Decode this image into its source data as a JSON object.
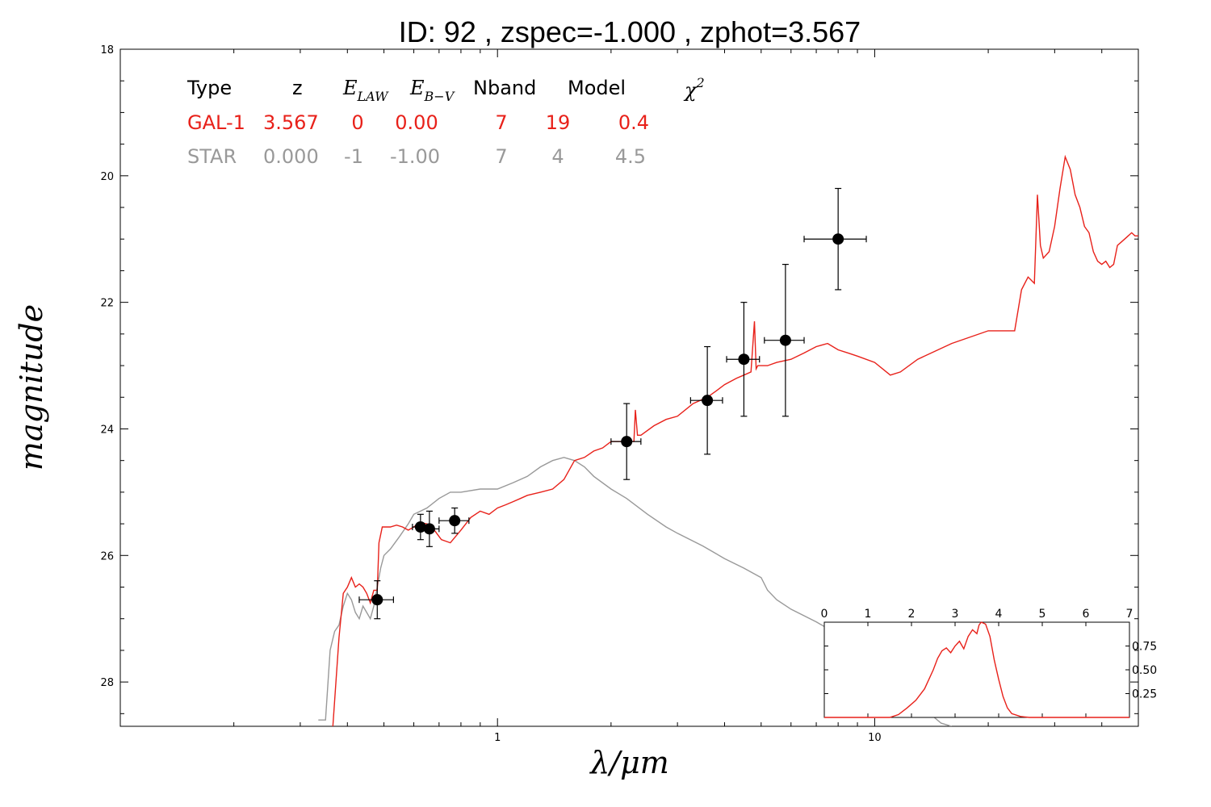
{
  "chart_data": {
    "type": "line",
    "title": "ID:  92    , zspec=-1.000 , zphot=3.567",
    "xlabel": "λ/μm",
    "ylabel": "magnitude",
    "x_scale": "log",
    "xlim": [
      0.1,
      50
    ],
    "ylim": [
      28.7,
      18
    ],
    "y_inverted": true,
    "xticks": [
      {
        "value": 1,
        "label": "1"
      },
      {
        "value": 10,
        "label": "10"
      }
    ],
    "yticks": [
      {
        "value": 18,
        "label": "18"
      },
      {
        "value": 20,
        "label": "20"
      },
      {
        "value": 22,
        "label": "22"
      },
      {
        "value": 24,
        "label": "24"
      },
      {
        "value": 26,
        "label": "26"
      },
      {
        "value": 28,
        "label": "28"
      }
    ],
    "grid": false,
    "table": {
      "headers": [
        "Type",
        "z",
        "E_LAW",
        "E_B-V",
        "Nband",
        "Model",
        "χ2"
      ],
      "header_parts": {
        "type": "Type",
        "z": "z",
        "elaw_main": "E",
        "elaw_sub": "LAW",
        "ebv_main": "E",
        "ebv_sub": "B−V",
        "nband": "Nband",
        "model": "Model",
        "chi_main": "χ",
        "chi_sup": "2"
      },
      "rows": [
        {
          "type": "GAL-1",
          "z": "3.567",
          "elaw": "0",
          "ebv": "0.00",
          "nband": "7",
          "model": "19",
          "chi2": "0.4",
          "color": "#e8211a"
        },
        {
          "type": "STAR",
          "z": "0.000",
          "elaw": "-1",
          "ebv": "-1.00",
          "nband": "7",
          "model": "4",
          "chi2": "4.5",
          "color": "#999999"
        }
      ]
    },
    "series": [
      {
        "name": "GAL-1",
        "color": "#e8211a",
        "x": [
          0.366,
          0.38,
          0.39,
          0.4,
          0.41,
          0.42,
          0.43,
          0.44,
          0.45,
          0.46,
          0.47,
          0.48,
          0.485,
          0.495,
          0.5,
          0.52,
          0.54,
          0.56,
          0.58,
          0.6,
          0.62,
          0.65,
          0.68,
          0.71,
          0.75,
          0.8,
          0.85,
          0.9,
          0.95,
          1.0,
          1.05,
          1.1,
          1.15,
          1.2,
          1.3,
          1.4,
          1.5,
          1.6,
          1.7,
          1.75,
          1.8,
          1.9,
          2.0,
          2.2,
          2.3,
          2.32,
          2.35,
          2.4,
          2.6,
          2.8,
          3.0,
          3.3,
          3.6,
          3.8,
          4.0,
          4.3,
          4.5,
          4.7,
          4.8,
          4.85,
          4.9,
          5.0,
          5.2,
          5.5,
          6.0,
          6.5,
          7.0,
          7.5,
          8.0,
          8.5,
          9.0,
          10.0,
          11.0,
          11.7,
          13.0,
          16.0,
          20.0,
          23.5,
          24.5,
          25.5,
          26.5,
          27.0,
          27.5,
          28.0,
          29.0,
          30.0,
          31.0,
          32.0,
          33.0,
          34.0,
          35.0,
          36.0,
          37.0,
          38.0,
          39.0,
          40.0,
          41.0,
          42.0,
          43.0,
          44.0,
          45.0,
          46.0,
          47.0,
          48.0,
          49.0,
          50.0
        ],
        "y": [
          28.7,
          27.3,
          26.6,
          26.5,
          26.35,
          26.5,
          26.45,
          26.5,
          26.6,
          26.75,
          26.55,
          26.55,
          25.8,
          25.55,
          25.55,
          25.55,
          25.52,
          25.55,
          25.6,
          25.55,
          25.48,
          25.5,
          25.6,
          25.75,
          25.8,
          25.6,
          25.4,
          25.3,
          25.35,
          25.25,
          25.2,
          25.15,
          25.1,
          25.05,
          25.0,
          24.95,
          24.8,
          24.5,
          24.45,
          24.4,
          24.35,
          24.3,
          24.2,
          24.2,
          24.2,
          23.7,
          24.1,
          24.1,
          23.95,
          23.85,
          23.8,
          23.6,
          23.5,
          23.4,
          23.3,
          23.2,
          23.15,
          23.1,
          22.3,
          23.05,
          23.0,
          23.0,
          23.0,
          22.95,
          22.9,
          22.8,
          22.7,
          22.65,
          22.75,
          22.8,
          22.85,
          22.95,
          23.15,
          23.1,
          22.9,
          22.65,
          22.45,
          22.45,
          21.8,
          21.6,
          21.7,
          20.3,
          21.1,
          21.3,
          21.2,
          20.8,
          20.2,
          19.7,
          19.9,
          20.3,
          20.5,
          20.8,
          20.9,
          21.2,
          21.35,
          21.4,
          21.35,
          21.45,
          21.4,
          21.1,
          21.05,
          21.0,
          20.95,
          20.9,
          20.95,
          20.95
        ]
      },
      {
        "name": "STAR",
        "color": "#999999",
        "x": [
          0.335,
          0.34,
          0.35,
          0.36,
          0.37,
          0.38,
          0.39,
          0.4,
          0.41,
          0.42,
          0.43,
          0.44,
          0.45,
          0.46,
          0.47,
          0.48,
          0.49,
          0.5,
          0.52,
          0.55,
          0.58,
          0.6,
          0.65,
          0.7,
          0.75,
          0.8,
          0.9,
          1.0,
          1.1,
          1.2,
          1.3,
          1.4,
          1.5,
          1.6,
          1.7,
          1.8,
          2.0,
          2.2,
          2.5,
          2.8,
          3.0,
          3.5,
          4.0,
          4.5,
          5.0,
          5.2,
          5.5,
          6.0,
          7.0,
          8.0,
          9.0,
          10.0,
          11.0,
          12.0,
          13.0,
          14.0,
          15.0,
          16.0
        ],
        "y": [
          28.6,
          28.6,
          28.6,
          27.5,
          27.2,
          27.1,
          26.8,
          26.6,
          26.7,
          26.9,
          27.0,
          26.8,
          26.9,
          27.0,
          26.8,
          26.5,
          26.2,
          26.0,
          25.9,
          25.7,
          25.5,
          25.35,
          25.25,
          25.1,
          25.0,
          25.0,
          24.95,
          24.95,
          24.85,
          24.75,
          24.6,
          24.5,
          24.45,
          24.5,
          24.6,
          24.75,
          24.95,
          25.1,
          25.35,
          25.55,
          25.65,
          25.85,
          26.05,
          26.2,
          26.35,
          26.55,
          26.7,
          26.85,
          27.05,
          27.25,
          27.45,
          27.6,
          27.8,
          28.05,
          28.3,
          28.5,
          28.65,
          28.7
        ]
      }
    ],
    "photometry": {
      "name": "observed",
      "color": "#000000",
      "points": [
        {
          "x": 0.48,
          "y": 26.7,
          "xerr": 0.05,
          "yerr": 0.3
        },
        {
          "x": 0.625,
          "y": 25.55,
          "xerr": 0.03,
          "yerr": 0.2
        },
        {
          "x": 0.66,
          "y": 25.58,
          "xerr": 0.04,
          "yerr": 0.28
        },
        {
          "x": 0.77,
          "y": 25.45,
          "xerr": 0.07,
          "yerr": 0.2
        },
        {
          "x": 2.2,
          "y": 24.2,
          "xerr": 0.2,
          "yerr": 0.6
        },
        {
          "x": 3.6,
          "y": 23.55,
          "xerr": 0.35,
          "yerr": 0.85
        },
        {
          "x": 4.5,
          "y": 22.9,
          "xerr": 0.45,
          "yerr": 0.9
        },
        {
          "x": 5.8,
          "y": 22.6,
          "xerr": 0.7,
          "yerr": 1.2
        },
        {
          "x": 8.0,
          "y": 21.0,
          "xerr": 1.5,
          "yerr": 0.8
        }
      ]
    },
    "inset": {
      "type": "line",
      "color": "#e8211a",
      "xlim": [
        0,
        7
      ],
      "ylim": [
        0,
        1.0
      ],
      "xticks": [
        {
          "value": 0,
          "label": "0"
        },
        {
          "value": 1,
          "label": "1"
        },
        {
          "value": 2,
          "label": "2"
        },
        {
          "value": 3,
          "label": "3"
        },
        {
          "value": 4,
          "label": "4"
        },
        {
          "value": 5,
          "label": "5"
        },
        {
          "value": 6,
          "label": "6"
        },
        {
          "value": 7,
          "label": "7"
        }
      ],
      "yticks": [
        {
          "value": 0.25,
          "label": "0.25"
        },
        {
          "value": 0.5,
          "label": "0.50"
        },
        {
          "value": 0.75,
          "label": "0.75"
        }
      ],
      "x": [
        0,
        1.5,
        1.7,
        1.9,
        2.1,
        2.3,
        2.5,
        2.6,
        2.7,
        2.8,
        2.9,
        3.0,
        3.1,
        3.2,
        3.3,
        3.4,
        3.5,
        3.55,
        3.6,
        3.7,
        3.8,
        3.9,
        4.0,
        4.1,
        4.2,
        4.3,
        4.5,
        4.7,
        5.0,
        7.0
      ],
      "y": [
        0,
        0,
        0.03,
        0.1,
        0.18,
        0.3,
        0.5,
        0.62,
        0.7,
        0.73,
        0.68,
        0.75,
        0.8,
        0.72,
        0.85,
        0.92,
        0.88,
        0.97,
        1.0,
        0.98,
        0.85,
        0.6,
        0.4,
        0.22,
        0.1,
        0.04,
        0.01,
        0,
        0,
        0
      ]
    }
  }
}
